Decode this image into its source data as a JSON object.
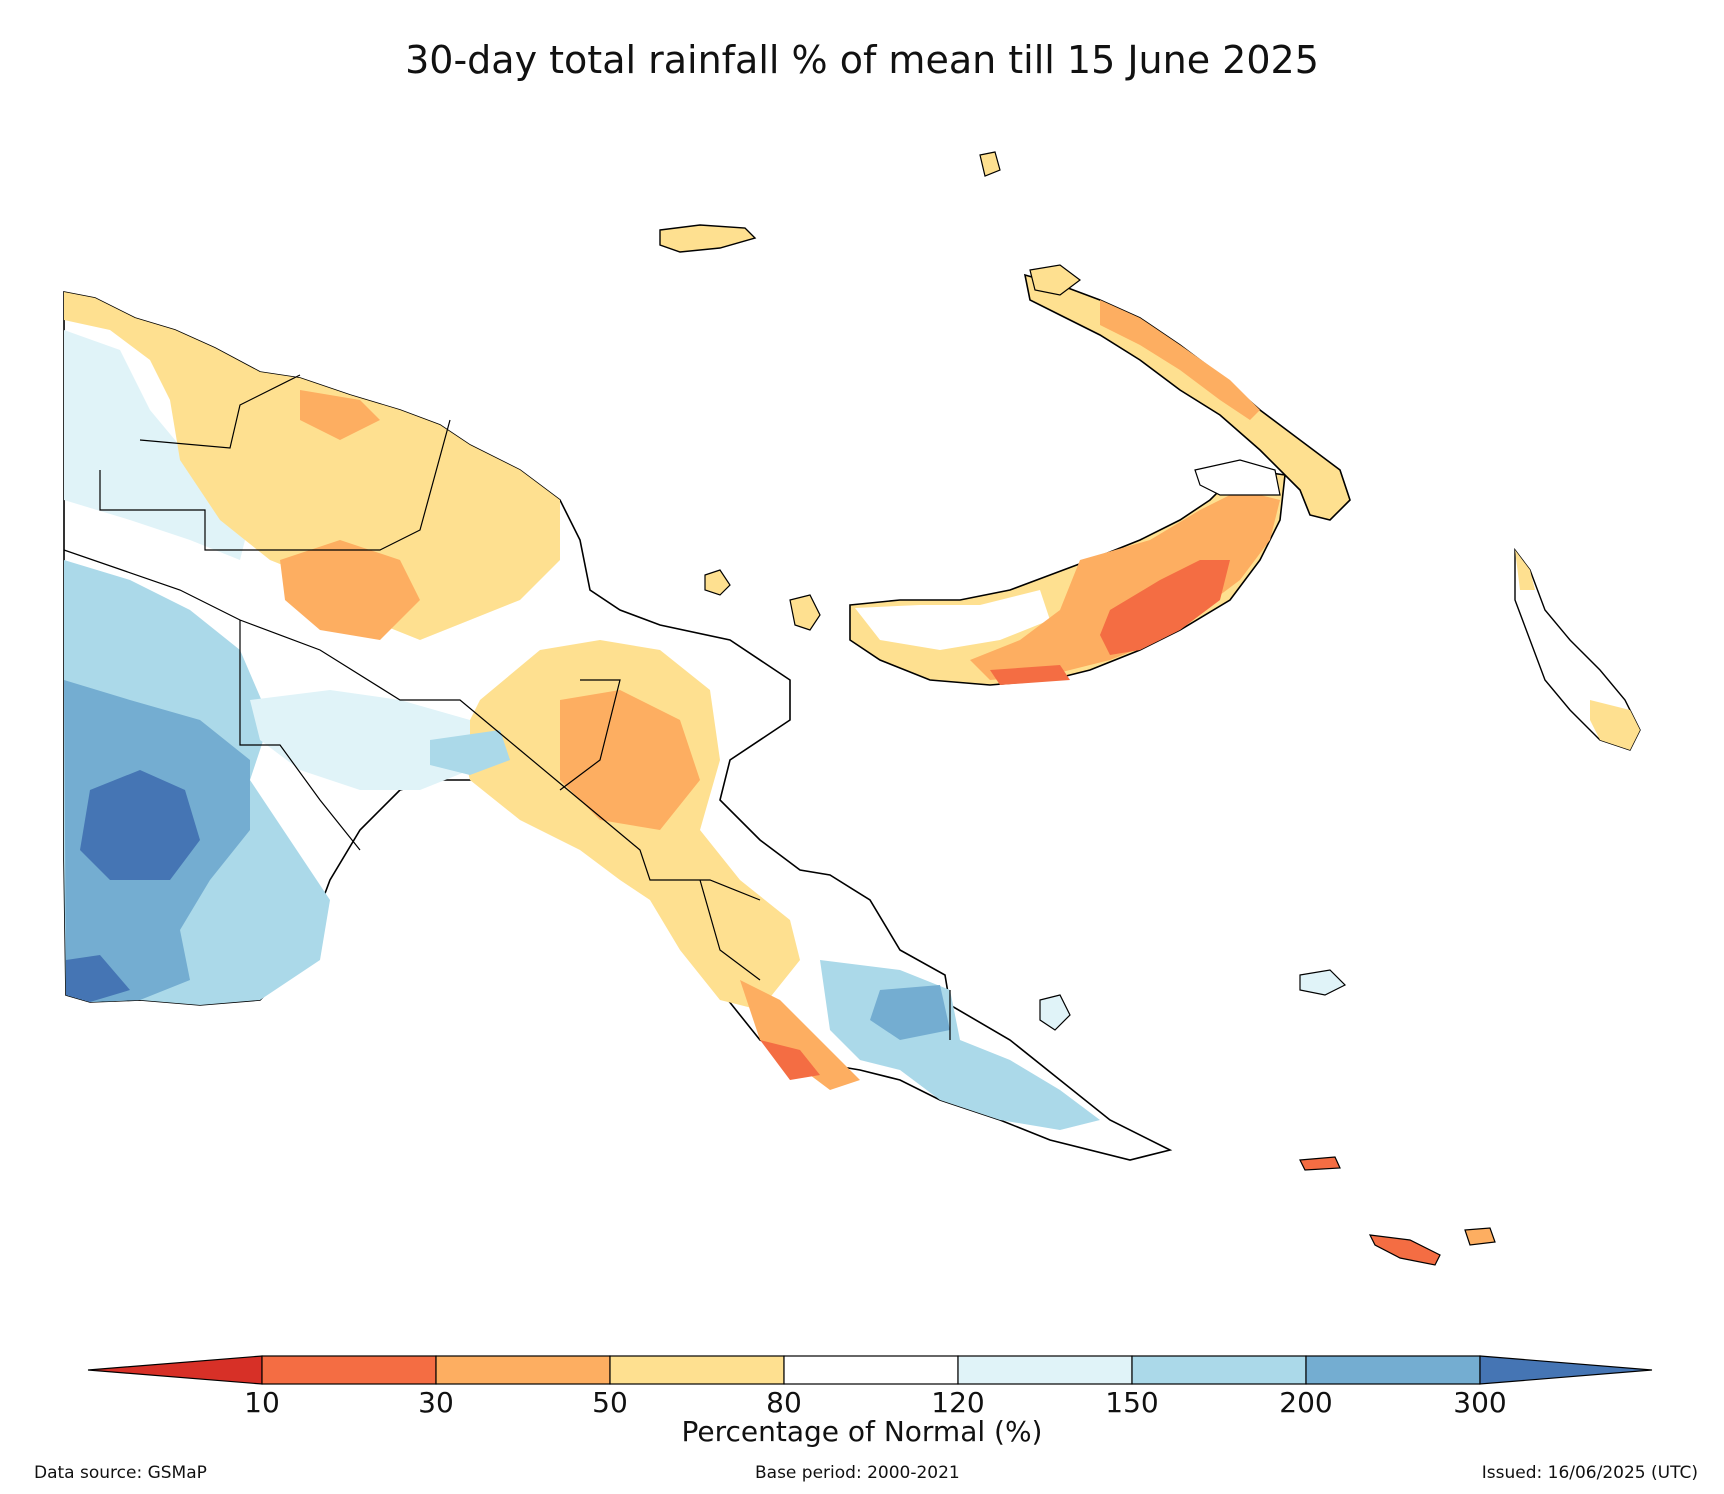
{
  "title": "30-day total rainfall % of mean till 15 June 2025",
  "colorbar": {
    "label": "Percentage of Normal (%)",
    "ticks": [
      "10",
      "30",
      "50",
      "80",
      "120",
      "150",
      "200",
      "300"
    ],
    "classes": [
      {
        "range": "<10",
        "color": "#d73027"
      },
      {
        "range": "10-30",
        "color": "#f46d43"
      },
      {
        "range": "30-50",
        "color": "#fdae61"
      },
      {
        "range": "50-80",
        "color": "#fee090"
      },
      {
        "range": "80-120",
        "color": "#ffffff"
      },
      {
        "range": "120-150",
        "color": "#e0f3f8"
      },
      {
        "range": "150-200",
        "color": "#abd9e9"
      },
      {
        "range": "200-300",
        "color": "#74add1"
      },
      {
        "range": ">300",
        "color": "#4575b4"
      }
    ]
  },
  "footer": {
    "source": "Data source: GSMaP",
    "base_period": "Base period: 2000-2021",
    "issued": "Issued: 16/06/2025 (UTC)"
  }
}
